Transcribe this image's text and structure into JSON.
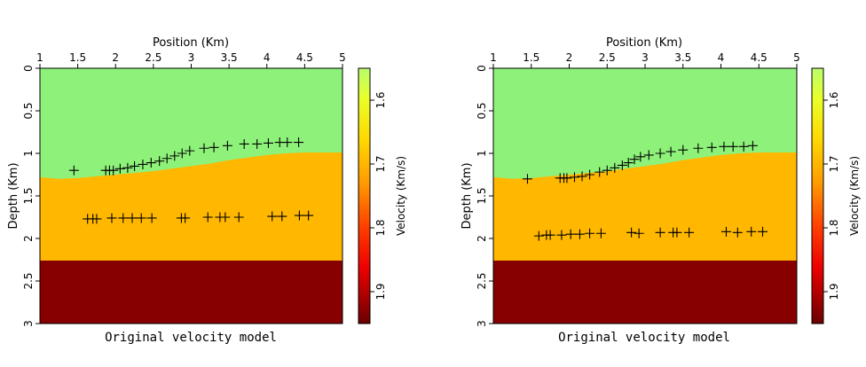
{
  "chart_data": [
    {
      "type": "image",
      "xlabel": "Position (Km)",
      "ylabel": "Depth (Km)",
      "caption": "Original velocity model",
      "colorbar_label": "Velocity (Km/s)",
      "xlim": [
        1,
        5
      ],
      "ylim": [
        0,
        3
      ],
      "xticks": [
        "1",
        "1.5",
        "2",
        "2.5",
        "3",
        "3.5",
        "4",
        "4.5",
        "5"
      ],
      "yticks": [
        "0",
        "0.5",
        "1",
        "1.5",
        "2",
        "2.5",
        "3"
      ],
      "colorbar_range": [
        1.55,
        1.95
      ],
      "colorbar_ticks": [
        "1.6",
        "1.7",
        "1.8",
        "1.9"
      ],
      "layers": [
        {
          "velocity": 1.6,
          "color": "#8ef27a"
        },
        {
          "velocity": 1.74,
          "color": "#ffb700"
        },
        {
          "velocity": 1.95,
          "color": "#870000"
        }
      ],
      "interface1": {
        "x": [
          1.0,
          1.25,
          1.5,
          1.75,
          2.0,
          2.25,
          2.5,
          2.75,
          3.0,
          3.25,
          3.5,
          3.75,
          4.0,
          4.25,
          4.5,
          4.75,
          5.0
        ],
        "depth": [
          1.28,
          1.3,
          1.29,
          1.27,
          1.25,
          1.23,
          1.21,
          1.18,
          1.15,
          1.12,
          1.08,
          1.05,
          1.02,
          1.0,
          0.99,
          0.99,
          0.99
        ]
      },
      "interface2_depth": 2.26,
      "picks": [
        [
          1.45,
          1.2
        ],
        [
          1.87,
          1.2
        ],
        [
          1.92,
          1.2
        ],
        [
          1.97,
          1.2
        ],
        [
          2.06,
          1.18
        ],
        [
          2.16,
          1.17
        ],
        [
          2.25,
          1.15
        ],
        [
          2.36,
          1.13
        ],
        [
          2.47,
          1.11
        ],
        [
          2.58,
          1.09
        ],
        [
          2.68,
          1.06
        ],
        [
          2.78,
          1.03
        ],
        [
          2.88,
          1.0
        ],
        [
          2.98,
          0.97
        ],
        [
          3.17,
          0.94
        ],
        [
          3.3,
          0.93
        ],
        [
          3.48,
          0.91
        ],
        [
          3.7,
          0.89
        ],
        [
          3.87,
          0.89
        ],
        [
          4.02,
          0.88
        ],
        [
          4.17,
          0.87
        ],
        [
          4.27,
          0.87
        ],
        [
          4.42,
          0.87
        ],
        [
          1.63,
          1.77
        ],
        [
          1.7,
          1.77
        ],
        [
          1.75,
          1.77
        ],
        [
          1.95,
          1.76
        ],
        [
          2.1,
          1.76
        ],
        [
          2.22,
          1.76
        ],
        [
          2.34,
          1.76
        ],
        [
          2.48,
          1.76
        ],
        [
          2.87,
          1.76
        ],
        [
          2.92,
          1.76
        ],
        [
          3.22,
          1.75
        ],
        [
          3.38,
          1.75
        ],
        [
          3.45,
          1.75
        ],
        [
          3.63,
          1.75
        ],
        [
          4.07,
          1.74
        ],
        [
          4.2,
          1.74
        ],
        [
          4.43,
          1.73
        ],
        [
          4.55,
          1.73
        ]
      ]
    },
    {
      "type": "image",
      "xlabel": "Position (Km)",
      "ylabel": "Depth (Km)",
      "caption": "Original velocity model",
      "colorbar_label": "Velocity (Km/s)",
      "xlim": [
        1,
        5
      ],
      "ylim": [
        0,
        3
      ],
      "xticks": [
        "1",
        "1.5",
        "2",
        "2.5",
        "3",
        "3.5",
        "4",
        "4.5",
        "5"
      ],
      "yticks": [
        "0",
        "0.5",
        "1",
        "1.5",
        "2",
        "2.5",
        "3"
      ],
      "colorbar_range": [
        1.55,
        1.95
      ],
      "colorbar_ticks": [
        "1.6",
        "1.7",
        "1.8",
        "1.9"
      ],
      "layers": [
        {
          "velocity": 1.6,
          "color": "#8ef27a"
        },
        {
          "velocity": 1.74,
          "color": "#ffb700"
        },
        {
          "velocity": 1.95,
          "color": "#870000"
        }
      ],
      "interface1": {
        "x": [
          1.0,
          1.25,
          1.5,
          1.75,
          2.0,
          2.25,
          2.5,
          2.75,
          3.0,
          3.25,
          3.5,
          3.75,
          4.0,
          4.25,
          4.5,
          4.75,
          5.0
        ],
        "depth": [
          1.28,
          1.3,
          1.29,
          1.27,
          1.25,
          1.23,
          1.21,
          1.18,
          1.15,
          1.12,
          1.08,
          1.05,
          1.02,
          1.0,
          0.99,
          0.99,
          0.99
        ]
      },
      "interface2_depth": 2.26,
      "picks": [
        [
          1.45,
          1.3
        ],
        [
          1.88,
          1.29
        ],
        [
          1.93,
          1.29
        ],
        [
          1.97,
          1.29
        ],
        [
          2.07,
          1.28
        ],
        [
          2.17,
          1.27
        ],
        [
          2.27,
          1.25
        ],
        [
          2.4,
          1.22
        ],
        [
          2.5,
          1.2
        ],
        [
          2.6,
          1.17
        ],
        [
          2.7,
          1.14
        ],
        [
          2.78,
          1.11
        ],
        [
          2.86,
          1.07
        ],
        [
          2.94,
          1.04
        ],
        [
          3.05,
          1.02
        ],
        [
          3.2,
          1.0
        ],
        [
          3.34,
          0.98
        ],
        [
          3.5,
          0.96
        ],
        [
          3.7,
          0.94
        ],
        [
          3.88,
          0.93
        ],
        [
          4.04,
          0.92
        ],
        [
          4.16,
          0.92
        ],
        [
          4.3,
          0.92
        ],
        [
          4.42,
          0.91
        ],
        [
          1.6,
          1.97
        ],
        [
          1.7,
          1.96
        ],
        [
          1.75,
          1.96
        ],
        [
          1.9,
          1.96
        ],
        [
          2.02,
          1.95
        ],
        [
          2.14,
          1.95
        ],
        [
          2.27,
          1.94
        ],
        [
          2.42,
          1.94
        ],
        [
          2.82,
          1.93
        ],
        [
          2.92,
          1.94
        ],
        [
          3.2,
          1.93
        ],
        [
          3.37,
          1.93
        ],
        [
          3.42,
          1.93
        ],
        [
          3.58,
          1.93
        ],
        [
          4.07,
          1.92
        ],
        [
          4.22,
          1.93
        ],
        [
          4.4,
          1.92
        ],
        [
          4.55,
          1.92
        ]
      ]
    }
  ]
}
